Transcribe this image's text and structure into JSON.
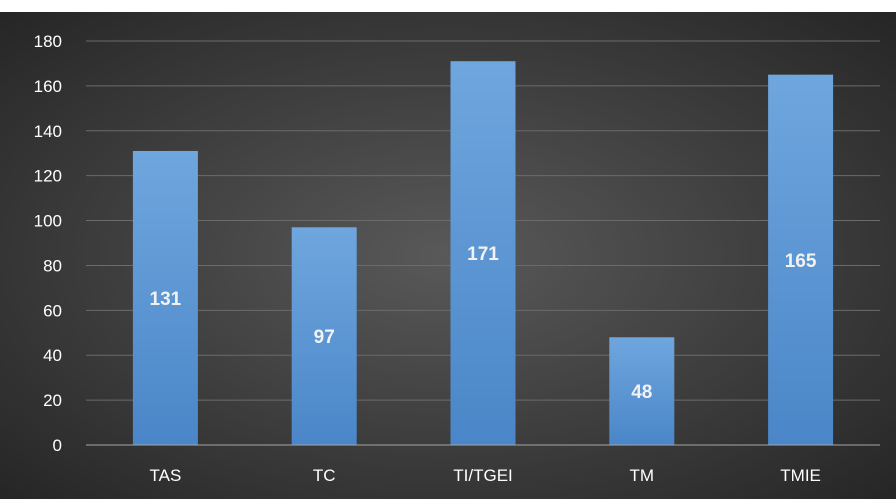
{
  "chart_data": {
    "type": "bar",
    "categories": [
      "TAS",
      "TC",
      "TI/TGEI",
      "TM",
      "TMIE"
    ],
    "values": [
      131,
      97,
      171,
      48,
      165
    ],
    "data_labels": [
      "131",
      "97",
      "171",
      "48",
      "165"
    ],
    "title": "",
    "xlabel": "",
    "ylabel": "",
    "ylim": [
      0,
      180
    ],
    "yticks": [
      0,
      20,
      40,
      60,
      80,
      100,
      120,
      140,
      160,
      180
    ],
    "ytick_labels": [
      "0",
      "20",
      "40",
      "60",
      "80",
      "100",
      "120",
      "140",
      "160",
      "180"
    ],
    "grid": true,
    "legend": "none"
  },
  "colors": {
    "background_center": "#595959",
    "background_edge": "#262626",
    "bar_top": "#6fa6de",
    "bar_bottom": "#4a86c8",
    "gridline": "#6b6b6b",
    "axis_line": "#a6a6a6",
    "text": "#ffffff"
  }
}
